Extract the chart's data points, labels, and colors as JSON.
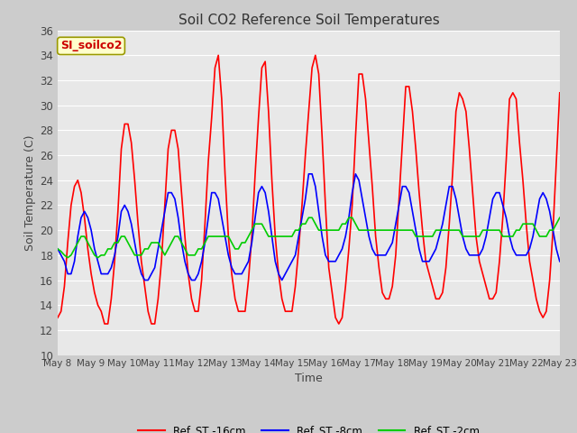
{
  "title": "Soil CO2 Reference Soil Temperatures",
  "xlabel": "Time",
  "ylabel": "Soil Temperature (C)",
  "ylim": [
    10,
    36
  ],
  "xlim": [
    0,
    15
  ],
  "yticks": [
    10,
    12,
    14,
    16,
    18,
    20,
    22,
    24,
    26,
    28,
    30,
    32,
    34,
    36
  ],
  "xtick_labels": [
    "May 8",
    "May 9",
    "May 10",
    "May 11",
    "May 12",
    "May 13",
    "May 14",
    "May 15",
    "May 16",
    "May 17",
    "May 18",
    "May 19",
    "May 20",
    "May 21",
    "May 22",
    "May 23"
  ],
  "label_box": "SI_soilco2",
  "label_box_color": "#ffffcc",
  "label_box_text_color": "#cc0000",
  "fig_bg_color": "#d0d0d0",
  "plot_bg_color": "#e8e8e8",
  "grid_color": "#ffffff",
  "series": [
    {
      "name": "Ref_ST -16cm",
      "color": "#ff0000",
      "linewidth": 1.2,
      "t": [
        0.0,
        0.1,
        0.2,
        0.3,
        0.4,
        0.5,
        0.6,
        0.7,
        0.8,
        0.9,
        1.0,
        1.1,
        1.2,
        1.3,
        1.4,
        1.5,
        1.6,
        1.7,
        1.8,
        1.9,
        2.0,
        2.1,
        2.2,
        2.3,
        2.4,
        2.5,
        2.6,
        2.7,
        2.8,
        2.9,
        3.0,
        3.1,
        3.2,
        3.3,
        3.4,
        3.5,
        3.6,
        3.7,
        3.8,
        3.9,
        4.0,
        4.1,
        4.2,
        4.3,
        4.4,
        4.5,
        4.6,
        4.7,
        4.8,
        4.9,
        5.0,
        5.1,
        5.2,
        5.3,
        5.4,
        5.5,
        5.6,
        5.7,
        5.8,
        5.9,
        6.0,
        6.1,
        6.2,
        6.3,
        6.4,
        6.5,
        6.6,
        6.7,
        6.8,
        6.9,
        7.0,
        7.1,
        7.2,
        7.3,
        7.4,
        7.5,
        7.6,
        7.7,
        7.8,
        7.9,
        8.0,
        8.1,
        8.2,
        8.3,
        8.4,
        8.5,
        8.6,
        8.7,
        8.8,
        8.9,
        9.0,
        9.1,
        9.2,
        9.3,
        9.4,
        9.5,
        9.6,
        9.7,
        9.8,
        9.9,
        10.0,
        10.1,
        10.2,
        10.3,
        10.4,
        10.5,
        10.6,
        10.7,
        10.8,
        10.9,
        11.0,
        11.1,
        11.2,
        11.3,
        11.4,
        11.5,
        11.6,
        11.7,
        11.8,
        11.9,
        12.0,
        12.1,
        12.2,
        12.3,
        12.4,
        12.5,
        12.6,
        12.7,
        12.8,
        12.9,
        13.0,
        13.1,
        13.2,
        13.3,
        13.4,
        13.5,
        13.6,
        13.7,
        13.8,
        13.9,
        14.0,
        14.1,
        14.2,
        14.3,
        14.4,
        14.5,
        14.6,
        14.7,
        14.8,
        14.9,
        15.0
      ],
      "v": [
        13.0,
        13.5,
        15.5,
        19.0,
        22.0,
        23.5,
        24.0,
        23.0,
        21.0,
        18.5,
        16.5,
        15.0,
        14.0,
        13.5,
        12.5,
        12.5,
        14.5,
        17.5,
        21.5,
        26.5,
        28.5,
        28.5,
        27.0,
        24.0,
        20.5,
        17.5,
        15.5,
        13.5,
        12.5,
        12.5,
        14.5,
        17.5,
        22.0,
        26.5,
        28.0,
        28.0,
        26.5,
        23.0,
        19.5,
        16.5,
        14.5,
        13.5,
        13.5,
        16.0,
        20.5,
        25.5,
        29.0,
        33.0,
        34.0,
        30.5,
        24.5,
        19.5,
        16.5,
        14.5,
        13.5,
        13.5,
        13.5,
        16.0,
        19.5,
        24.5,
        29.0,
        33.0,
        33.5,
        29.5,
        24.0,
        19.5,
        16.5,
        14.5,
        13.5,
        13.5,
        13.5,
        15.5,
        18.5,
        22.0,
        26.0,
        29.5,
        33.0,
        34.0,
        32.5,
        27.5,
        22.0,
        17.0,
        15.0,
        13.0,
        12.5,
        13.0,
        15.5,
        18.5,
        22.0,
        27.5,
        32.5,
        32.5,
        30.5,
        27.0,
        23.5,
        19.5,
        17.0,
        15.0,
        14.5,
        14.5,
        15.5,
        18.0,
        22.5,
        27.0,
        31.5,
        31.5,
        29.5,
        26.5,
        23.0,
        20.0,
        17.5,
        16.5,
        15.5,
        14.5,
        14.5,
        15.0,
        17.0,
        20.5,
        24.5,
        29.5,
        31.0,
        30.5,
        29.5,
        26.5,
        23.0,
        19.5,
        17.5,
        16.5,
        15.5,
        14.5,
        14.5,
        15.0,
        17.5,
        21.0,
        25.5,
        30.5,
        31.0,
        30.5,
        27.0,
        24.0,
        20.5,
        17.5,
        16.0,
        14.5,
        13.5,
        13.0,
        13.5,
        16.0,
        20.0,
        25.5,
        31.0
      ]
    },
    {
      "name": "Ref_ST -8cm",
      "color": "#0000ff",
      "linewidth": 1.2,
      "t": [
        0.0,
        0.1,
        0.2,
        0.3,
        0.4,
        0.5,
        0.6,
        0.7,
        0.8,
        0.9,
        1.0,
        1.1,
        1.2,
        1.3,
        1.4,
        1.5,
        1.6,
        1.7,
        1.8,
        1.9,
        2.0,
        2.1,
        2.2,
        2.3,
        2.4,
        2.5,
        2.6,
        2.7,
        2.8,
        2.9,
        3.0,
        3.1,
        3.2,
        3.3,
        3.4,
        3.5,
        3.6,
        3.7,
        3.8,
        3.9,
        4.0,
        4.1,
        4.2,
        4.3,
        4.4,
        4.5,
        4.6,
        4.7,
        4.8,
        4.9,
        5.0,
        5.1,
        5.2,
        5.3,
        5.4,
        5.5,
        5.6,
        5.7,
        5.8,
        5.9,
        6.0,
        6.1,
        6.2,
        6.3,
        6.4,
        6.5,
        6.6,
        6.7,
        6.8,
        6.9,
        7.0,
        7.1,
        7.2,
        7.3,
        7.4,
        7.5,
        7.6,
        7.7,
        7.8,
        7.9,
        8.0,
        8.1,
        8.2,
        8.3,
        8.4,
        8.5,
        8.6,
        8.7,
        8.8,
        8.9,
        9.0,
        9.1,
        9.2,
        9.3,
        9.4,
        9.5,
        9.6,
        9.7,
        9.8,
        9.9,
        10.0,
        10.1,
        10.2,
        10.3,
        10.4,
        10.5,
        10.6,
        10.7,
        10.8,
        10.9,
        11.0,
        11.1,
        11.2,
        11.3,
        11.4,
        11.5,
        11.6,
        11.7,
        11.8,
        11.9,
        12.0,
        12.1,
        12.2,
        12.3,
        12.4,
        12.5,
        12.6,
        12.7,
        12.8,
        12.9,
        13.0,
        13.1,
        13.2,
        13.3,
        13.4,
        13.5,
        13.6,
        13.7,
        13.8,
        13.9,
        14.0,
        14.1,
        14.2,
        14.3,
        14.4,
        14.5,
        14.6,
        14.7,
        14.8,
        14.9,
        15.0
      ],
      "v": [
        18.5,
        18.0,
        17.5,
        16.5,
        16.5,
        17.5,
        19.5,
        21.0,
        21.5,
        21.0,
        20.0,
        18.5,
        17.5,
        16.5,
        16.5,
        16.5,
        17.0,
        18.0,
        19.5,
        21.5,
        22.0,
        21.5,
        20.5,
        19.0,
        17.5,
        16.5,
        16.0,
        16.0,
        16.5,
        17.0,
        18.5,
        20.0,
        21.5,
        23.0,
        23.0,
        22.5,
        21.0,
        19.0,
        17.5,
        16.5,
        16.0,
        16.0,
        16.5,
        17.5,
        19.0,
        21.0,
        23.0,
        23.0,
        22.5,
        21.0,
        19.5,
        18.0,
        17.0,
        16.5,
        16.5,
        16.5,
        17.0,
        17.5,
        19.0,
        21.0,
        23.0,
        23.5,
        23.0,
        21.5,
        19.5,
        17.5,
        16.5,
        16.0,
        16.5,
        17.0,
        17.5,
        18.0,
        19.5,
        21.0,
        22.5,
        24.5,
        24.5,
        23.5,
        21.5,
        19.5,
        18.0,
        17.5,
        17.5,
        17.5,
        18.0,
        18.5,
        19.5,
        21.0,
        23.0,
        24.5,
        24.0,
        22.5,
        21.0,
        19.5,
        18.5,
        18.0,
        18.0,
        18.0,
        18.0,
        18.5,
        19.0,
        20.5,
        22.0,
        23.5,
        23.5,
        23.0,
        21.5,
        20.0,
        18.5,
        17.5,
        17.5,
        17.5,
        18.0,
        18.5,
        19.5,
        20.5,
        22.0,
        23.5,
        23.5,
        22.5,
        21.0,
        19.5,
        18.5,
        18.0,
        18.0,
        18.0,
        18.0,
        18.5,
        19.5,
        21.0,
        22.5,
        23.0,
        23.0,
        22.0,
        21.0,
        19.5,
        18.5,
        18.0,
        18.0,
        18.0,
        18.0,
        18.5,
        19.5,
        21.0,
        22.5,
        23.0,
        22.5,
        21.5,
        20.0,
        18.5,
        17.5
      ]
    },
    {
      "name": "Ref_ST -2cm",
      "color": "#00cc00",
      "linewidth": 1.2,
      "t": [
        0.0,
        0.1,
        0.2,
        0.3,
        0.4,
        0.5,
        0.6,
        0.7,
        0.8,
        0.9,
        1.0,
        1.1,
        1.2,
        1.3,
        1.4,
        1.5,
        1.6,
        1.7,
        1.8,
        1.9,
        2.0,
        2.1,
        2.2,
        2.3,
        2.4,
        2.5,
        2.6,
        2.7,
        2.8,
        2.9,
        3.0,
        3.1,
        3.2,
        3.3,
        3.4,
        3.5,
        3.6,
        3.7,
        3.8,
        3.9,
        4.0,
        4.1,
        4.2,
        4.3,
        4.4,
        4.5,
        4.6,
        4.7,
        4.8,
        4.9,
        5.0,
        5.1,
        5.2,
        5.3,
        5.4,
        5.5,
        5.6,
        5.7,
        5.8,
        5.9,
        6.0,
        6.1,
        6.2,
        6.3,
        6.4,
        6.5,
        6.6,
        6.7,
        6.8,
        6.9,
        7.0,
        7.1,
        7.2,
        7.3,
        7.4,
        7.5,
        7.6,
        7.7,
        7.8,
        7.9,
        8.0,
        8.1,
        8.2,
        8.3,
        8.4,
        8.5,
        8.6,
        8.7,
        8.8,
        8.9,
        9.0,
        9.1,
        9.2,
        9.3,
        9.4,
        9.5,
        9.6,
        9.7,
        9.8,
        9.9,
        10.0,
        10.1,
        10.2,
        10.3,
        10.4,
        10.5,
        10.6,
        10.7,
        10.8,
        10.9,
        11.0,
        11.1,
        11.2,
        11.3,
        11.4,
        11.5,
        11.6,
        11.7,
        11.8,
        11.9,
        12.0,
        12.1,
        12.2,
        12.3,
        12.4,
        12.5,
        12.6,
        12.7,
        12.8,
        12.9,
        13.0,
        13.1,
        13.2,
        13.3,
        13.4,
        13.5,
        13.6,
        13.7,
        13.8,
        13.9,
        14.0,
        14.1,
        14.2,
        14.3,
        14.4,
        14.5,
        14.6,
        14.7,
        14.8,
        14.9,
        15.0
      ],
      "v": [
        18.5,
        18.3,
        18.0,
        17.8,
        18.0,
        18.5,
        19.0,
        19.5,
        19.5,
        19.0,
        18.5,
        18.0,
        17.8,
        18.0,
        18.0,
        18.5,
        18.5,
        19.0,
        19.0,
        19.5,
        19.5,
        19.0,
        18.5,
        18.0,
        18.0,
        18.0,
        18.5,
        18.5,
        19.0,
        19.0,
        19.0,
        18.5,
        18.0,
        18.5,
        19.0,
        19.5,
        19.5,
        19.0,
        18.5,
        18.0,
        18.0,
        18.0,
        18.5,
        18.5,
        19.0,
        19.5,
        19.5,
        19.5,
        19.5,
        19.5,
        19.5,
        19.5,
        19.0,
        18.5,
        18.5,
        19.0,
        19.0,
        19.5,
        20.0,
        20.5,
        20.5,
        20.5,
        20.0,
        19.5,
        19.5,
        19.5,
        19.5,
        19.5,
        19.5,
        19.5,
        19.5,
        20.0,
        20.0,
        20.5,
        20.5,
        21.0,
        21.0,
        20.5,
        20.0,
        20.0,
        20.0,
        20.0,
        20.0,
        20.0,
        20.0,
        20.5,
        20.5,
        21.0,
        21.0,
        20.5,
        20.0,
        20.0,
        20.0,
        20.0,
        20.0,
        20.0,
        20.0,
        20.0,
        20.0,
        20.0,
        20.0,
        20.0,
        20.0,
        20.0,
        20.0,
        20.0,
        20.0,
        19.5,
        19.5,
        19.5,
        19.5,
        19.5,
        19.5,
        20.0,
        20.0,
        20.0,
        20.0,
        20.0,
        20.0,
        20.0,
        20.0,
        19.5,
        19.5,
        19.5,
        19.5,
        19.5,
        19.5,
        20.0,
        20.0,
        20.0,
        20.0,
        20.0,
        20.0,
        19.5,
        19.5,
        19.5,
        19.5,
        20.0,
        20.0,
        20.5,
        20.5,
        20.5,
        20.5,
        20.0,
        19.5,
        19.5,
        19.5,
        20.0,
        20.0,
        20.5,
        21.0
      ]
    }
  ]
}
